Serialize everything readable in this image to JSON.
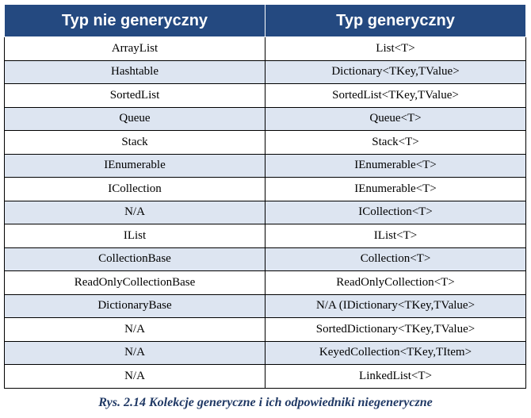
{
  "table": {
    "headers": [
      "Typ nie generyczny",
      "Typ generyczny"
    ],
    "rows": [
      [
        "ArrayList",
        "List<T>"
      ],
      [
        "Hashtable",
        "Dictionary<TKey,TValue>"
      ],
      [
        "SortedList",
        "SortedList<TKey,TValue>"
      ],
      [
        "Queue",
        "Queue<T>"
      ],
      [
        "Stack",
        "Stack<T>"
      ],
      [
        "IEnumerable",
        "IEnumerable<T>"
      ],
      [
        "ICollection",
        "IEnumerable<T>"
      ],
      [
        "N/A",
        "ICollection<T>"
      ],
      [
        "IList",
        "IList<T>"
      ],
      [
        "CollectionBase",
        "Collection<T>"
      ],
      [
        "ReadOnlyCollectionBase",
        "ReadOnlyCollection<T>"
      ],
      [
        "DictionaryBase",
        "N/A (IDictionary<TKey,TValue>"
      ],
      [
        "N/A",
        "SortedDictionary<TKey,TValue>"
      ],
      [
        "N/A",
        "KeyedCollection<TKey,TItem>"
      ],
      [
        "N/A",
        "LinkedList<T>"
      ]
    ]
  },
  "caption": "Rys. 2.14 Kolekcje generyczne i ich odpowiedniki niegeneryczne",
  "colors": {
    "header_bg": "#244980",
    "header_text": "#ffffff",
    "alt_row_bg": "#dde5f1",
    "caption_text": "#1f3864"
  }
}
